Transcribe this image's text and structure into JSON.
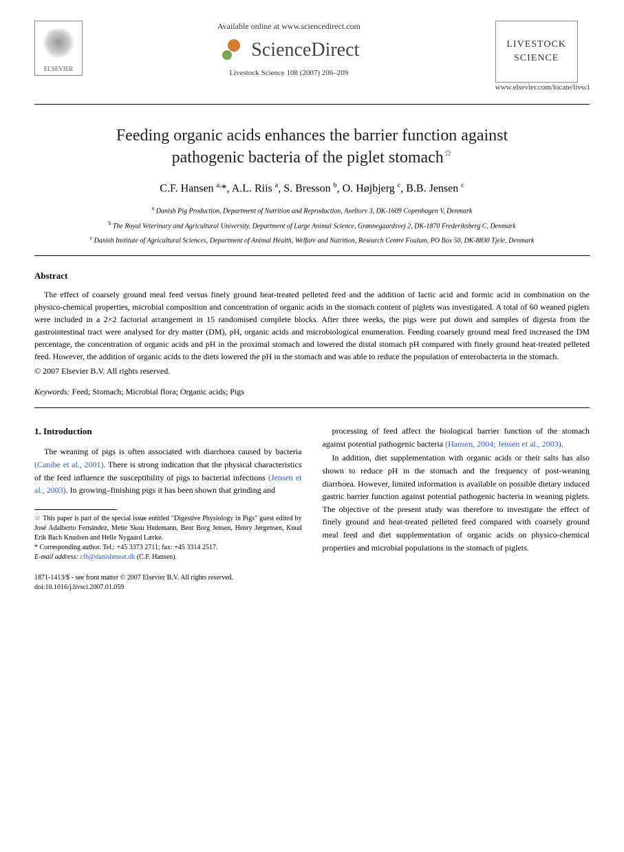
{
  "header": {
    "elsevier_label": "ELSEVIER",
    "available_online": "Available online at www.sciencedirect.com",
    "sciencedirect": "ScienceDirect",
    "citation": "Livestock Science 108 (2007) 206–209",
    "journal_name_line1": "LIVESTOCK",
    "journal_name_line2": "SCIENCE",
    "locate_url": "www.elsevier.com/locate/livsci"
  },
  "article": {
    "title_line1": "Feeding organic acids enhances the barrier function against",
    "title_line2": "pathogenic bacteria of the piglet stomach",
    "star": "☆",
    "authors_html": "C.F. Hansen <sup>a,</sup>*, A.L. Riis <sup>a</sup>, S. Bresson <sup>b</sup>, O. Højbjerg <sup>c</sup>, B.B. Jensen <sup>c</sup>",
    "affiliations": [
      "<sup>a</sup> Danish Pig Production, Department of Nutrition and Reproduction, Axeltorv 3, DK-1609 Copenhagen V, Denmark",
      "<sup>b</sup> The Royal Veterinary and Agricultural University, Department of Large Animal Science, Grønnegaardsvej 2, DK-1870 Frederiksberg C, Denmark",
      "<sup>c</sup> Danish Institute of Agricultural Sciences, Department of Animal Health, Welfare and Nutrition, Research Centre Foulum, PO Box 50, DK-8830 Tjele, Denmark"
    ]
  },
  "abstract": {
    "heading": "Abstract",
    "body": "The effect of coarsely ground meal feed versus finely ground heat-treated pelleted feed and the addition of lactic acid and formic acid in combination on the physico-chemical properties, microbial composition and concentration of organic acids in the stomach content of piglets was investigated. A total of 60 weaned piglets were included in a 2×2 factorial arrangement in 15 randomised complete blocks. After three weeks, the pigs were put down and samples of digesta from the gastrointestinal tract were analysed for dry matter (DM), pH, organic acids and microbiological enumeration. Feeding coarsely ground meal feed increased the DM percentage, the concentration of organic acids and pH in the proximal stomach and lowered the distal stomach pH compared with finely ground heat-treated pelleted feed. However, the addition of organic acids to the diets lowered the pH in the stomach and was able to reduce the population of enterobacteria in the stomach.",
    "copyright": "© 2007 Elsevier B.V. All rights reserved."
  },
  "keywords": {
    "label": "Keywords:",
    "text": " Feed; Stomach; Microbial flora; Organic acids; Pigs"
  },
  "intro": {
    "heading": "1. Introduction",
    "p1_a": "The weaning of pigs is often associated with diarrhoea caused by bacteria ",
    "p1_cite1": "(Canibe et al., 2001)",
    "p1_b": ". There is strong indication that the physical characteristics of the feed influence the susceptibility of pigs to bacterial infections ",
    "p1_cite2": "(Jensen et al., 2003)",
    "p1_c": ". In growing–finishing pigs it has been shown that grinding and",
    "p2_a": "processing of feed affect the biological barrier function of the stomach against potential pathogenic bacteria ",
    "p2_cite": "(Hansen, 2004; Jensen et al., 2003)",
    "p2_b": ".",
    "p3": "In addition, diet supplementation with organic acids or their salts has also shown to reduce pH in the stomach and the frequency of post-weaning diarrhoea. However, limited information is available on possible dietary induced gastric barrier function against potential pathogenic bacteria in weaning piglets. The objective of the present study was therefore to investigate the effect of finely ground and heat-treated pelleted feed compared with coarsely ground meal feed and diet supplementation of organic acids on physico-chemical properties and microbial populations in the stomach of piglets."
  },
  "footnotes": {
    "note_star": "☆ This paper is part of the special issue entitled \"Digestive Physiology in Pigs\" guest edited by José Adalberto Fernández, Mette Skou Hedemann, Bent Borg Jensen, Henry Jørgensen, Knud Erik Bach Knudsen and Helle Nygaard Lærke.",
    "corr_label": "* Corresponding author. Tel.: +45 3373 2711; fax: +45 3314 2517.",
    "email_label": "E-mail address:",
    "email_value": " cfh@danishmeat.dk ",
    "email_tail": "(C.F. Hansen)."
  },
  "footer": {
    "left": "1871-1413/$ - see front matter © 2007 Elsevier B.V. All rights reserved.",
    "doi": "doi:10.1016/j.livsci.2007.01.059"
  },
  "colors": {
    "text": "#000000",
    "link": "#3355cc",
    "background": "#ffffff"
  }
}
